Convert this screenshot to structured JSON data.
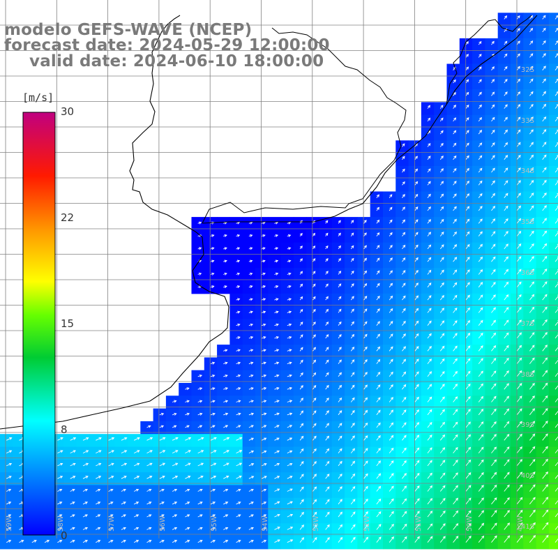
{
  "title": {
    "line1": "modelo GEFS-WAVE (NCEP)",
    "line2": "forecast date: 2024-05-29 12:00:00",
    "line3": "valid date: 2024-06-10 18:00:00"
  },
  "colorbar": {
    "unit": "[m/s]",
    "ticks": [
      "30",
      "22",
      "15",
      "8",
      "0"
    ],
    "colors": [
      "#0000ff",
      "#00aaff",
      "#00ffff",
      "#00ff00",
      "#ffff00",
      "#ff9900",
      "#ff0000",
      "#c00080"
    ]
  },
  "lat_labels": [
    "32S",
    "33S",
    "34S",
    "35S",
    "36S",
    "37S",
    "38S",
    "39S",
    "40S",
    "41S"
  ],
  "lon_labels": [
    "59W",
    "58W",
    "57W",
    "56W",
    "55W",
    "54W",
    "53W",
    "52W",
    "51W",
    "50W",
    "49W"
  ],
  "field": {
    "variable": "wind speed",
    "scale_max": 30,
    "land_color": "#ffffff",
    "grid_color": "#808080",
    "coast_color": "#000000"
  }
}
